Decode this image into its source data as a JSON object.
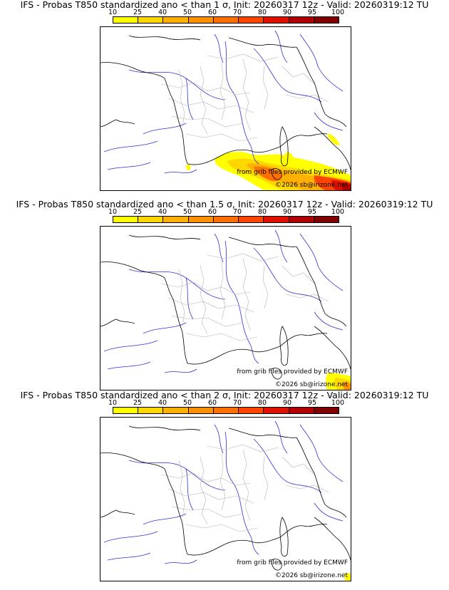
{
  "panels": [
    {
      "title": "IFS - Probas T850  standardized ano < than 1 σ, Init: 20260317 12z - Valid: 20260319:12 TU",
      "credit_grib": "from grib files provided by ECMWF",
      "credit_copyright": "©2026 sb@irizone.net"
    },
    {
      "title": "IFS - Probas T850  standardized ano < than 1.5 σ, Init: 20260317 12z - Valid: 20260319:12 TU",
      "credit_grib": "from grib files provided by ECMWF",
      "credit_copyright": "©2026 sb@irizone.net"
    },
    {
      "title": "IFS - Probas T850  standardized ano < than 2 σ, Init: 20260317 12z - Valid: 20260319:12 TU",
      "credit_grib": "from grib files provided by ECMWF",
      "credit_copyright": "©2026 sb@irizone.net"
    }
  ],
  "legend": {
    "ticks": [
      "10",
      "25",
      "40",
      "50",
      "60",
      "70",
      "80",
      "90",
      "95",
      "100"
    ],
    "colors": [
      "#ffff00",
      "#ffd700",
      "#ffb000",
      "#ff9000",
      "#ff7000",
      "#ff4500",
      "#e01000",
      "#b00000",
      "#800000"
    ]
  }
}
